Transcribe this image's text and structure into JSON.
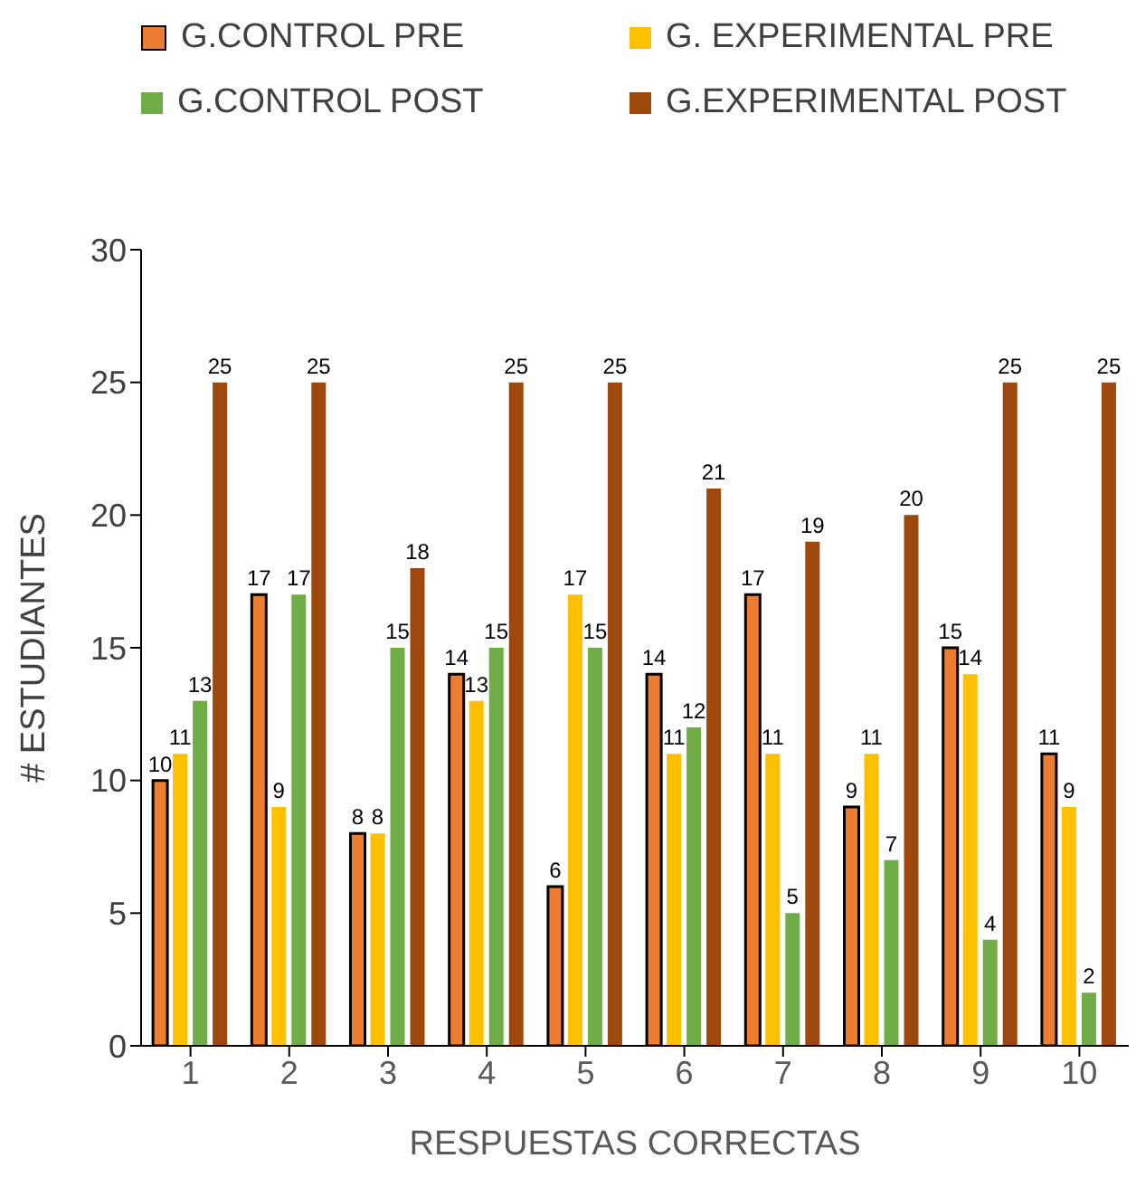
{
  "chart_data": {
    "type": "bar",
    "xlabel": "RESPUESTAS CORRECTAS",
    "ylabel": "# ESTUDIANTES",
    "categories": [
      "1",
      "2",
      "3",
      "4",
      "5",
      "6",
      "7",
      "8",
      "9",
      "10"
    ],
    "series": [
      {
        "name": "G.CONTROL PRE",
        "color": "#ed7d31",
        "values": [
          10,
          17,
          8,
          14,
          6,
          14,
          17,
          9,
          15,
          11
        ]
      },
      {
        "name": "G. EXPERIMENTAL PRE",
        "color": "#ffc000",
        "values": [
          11,
          9,
          8,
          13,
          17,
          11,
          11,
          11,
          14,
          9
        ]
      },
      {
        "name": "G.CONTROL POST",
        "color": "#70ad47",
        "values": [
          13,
          17,
          15,
          15,
          15,
          12,
          5,
          7,
          4,
          2
        ]
      },
      {
        "name": "G.EXPERIMENTAL POST",
        "color": "#9e480e",
        "values": [
          25,
          25,
          18,
          25,
          25,
          21,
          19,
          20,
          25,
          25
        ]
      }
    ],
    "ylim": [
      0,
      30
    ],
    "yticks": [
      0,
      5,
      10,
      15,
      20,
      25,
      30
    ],
    "data_labels": true,
    "legend": "top"
  }
}
